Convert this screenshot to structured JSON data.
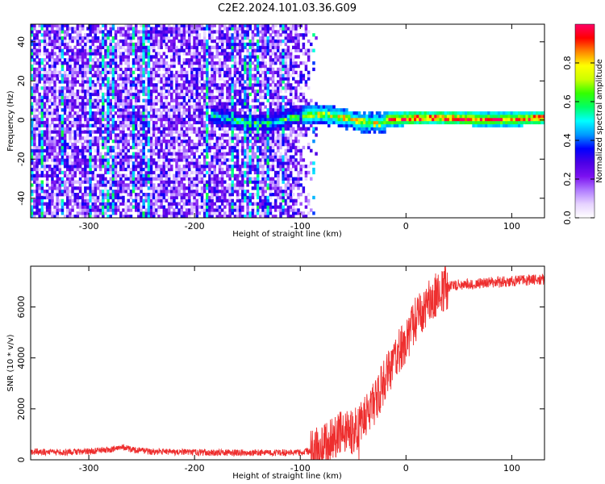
{
  "figure": {
    "title": "C2E2.2024.101.03.36.G09"
  },
  "chart_data": [
    {
      "type": "heatmap",
      "title": "C2E2.2024.101.03.36.G09",
      "xlabel": "Height of straight line (km)",
      "ylabel": "Frequency (Hz)",
      "xlim": [
        -355,
        131
      ],
      "ylim": [
        -50,
        49
      ],
      "x_ticks": [
        -300,
        -200,
        -100,
        0,
        100
      ],
      "y_ticks": [
        -40,
        -20,
        0,
        20,
        40
      ],
      "colorbar": {
        "label": "Normalized spectral amplitude",
        "range": [
          0,
          1
        ],
        "ticks": [
          0.0,
          0.2,
          0.4,
          0.6,
          0.8
        ],
        "colormap": [
          "#ffffff",
          "#e6d2ff",
          "#b07bff",
          "#7b10f0",
          "#4a00e6",
          "#0000ff",
          "#0099ff",
          "#00ffff",
          "#00ff66",
          "#33ff00",
          "#ccff00",
          "#ffff00",
          "#ff8800",
          "#ff0000",
          "#ff0066"
        ]
      },
      "features": {
        "noise_region_x": [
          -355,
          -85
        ],
        "carrier_band_x": [
          -185,
          131
        ],
        "carrier_center_hz": 0
      }
    },
    {
      "type": "line",
      "xlabel": "Height of straight line (km)",
      "ylabel": "SNR (10 * v/v)",
      "xlim": [
        -355,
        131
      ],
      "ylim": [
        0,
        7600
      ],
      "x_ticks": [
        -300,
        -200,
        -100,
        0,
        100
      ],
      "y_ticks": [
        0,
        2000,
        4000,
        6000
      ],
      "color": "#ee2e2e",
      "series": [
        {
          "x": [
            -355,
            -330,
            -300,
            -280,
            -270,
            -260,
            -240,
            -220,
            -200,
            -180,
            -160,
            -140,
            -120,
            -100,
            -90,
            -80,
            -70,
            -60,
            -50,
            -45,
            -40,
            -35,
            -30,
            -25,
            -20,
            -15,
            -10,
            -5,
            0,
            5,
            10,
            20,
            30,
            40,
            50,
            60,
            70,
            80,
            90,
            100,
            110,
            120,
            131
          ],
          "y": [
            320,
            300,
            320,
            380,
            520,
            400,
            320,
            300,
            290,
            280,
            280,
            280,
            280,
            290,
            340,
            480,
            780,
            1250,
            1100,
            1350,
            1750,
            1900,
            2200,
            2650,
            3150,
            3550,
            3950,
            4350,
            4700,
            5100,
            5600,
            6150,
            6550,
            6780,
            6880,
            6880,
            6920,
            6960,
            6980,
            7020,
            7050,
            7070,
            7090
          ]
        }
      ]
    }
  ]
}
